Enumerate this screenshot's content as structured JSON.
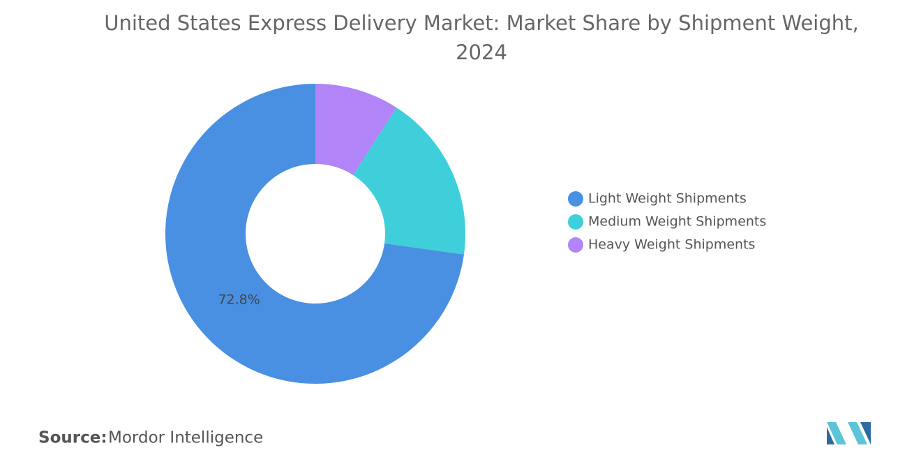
{
  "chart_data": {
    "type": "donut",
    "title": "United States Express Delivery Market: Market Share by Shipment Weight, 2024",
    "categories": [
      "Light Weight Shipments",
      "Medium Weight Shipments",
      "Heavy Weight Shipments"
    ],
    "values": [
      72.8,
      18.1,
      9.1
    ],
    "value_labels": [
      "72.8%",
      null,
      null
    ],
    "colors": [
      "#4a90e2",
      "#3ecfda",
      "#b184f7"
    ],
    "legend": "right",
    "source_label": "Source:",
    "source": "Mordor Intelligence"
  }
}
